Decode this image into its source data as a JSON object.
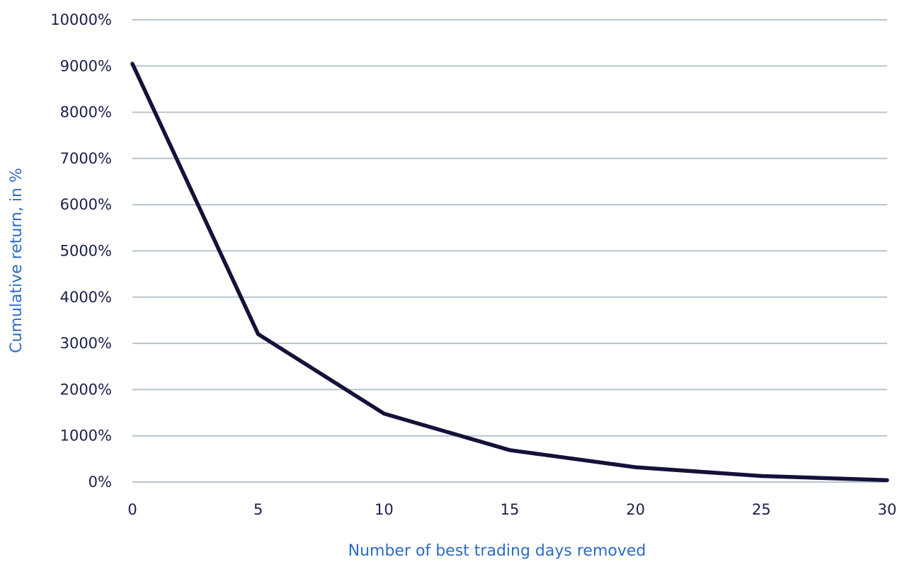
{
  "chart_data": {
    "type": "line",
    "xlabel": "Number of best trading days removed",
    "ylabel": "Cumulative return, in %",
    "x": [
      0,
      5,
      10,
      15,
      20,
      25,
      30
    ],
    "series": [
      {
        "values": [
          9050,
          3200,
          1480,
          690,
          320,
          130,
          40
        ]
      }
    ],
    "xlim": [
      0,
      30
    ],
    "ylim": [
      0,
      10000
    ],
    "x_ticks": [
      0,
      5,
      10,
      15,
      20,
      25,
      30
    ],
    "x_tick_labels": [
      "0",
      "5",
      "10",
      "15",
      "20",
      "25",
      "30"
    ],
    "y_ticks": [
      0,
      1000,
      2000,
      3000,
      4000,
      5000,
      6000,
      7000,
      8000,
      9000,
      10000
    ],
    "y_tick_labels": [
      "0%",
      "1000%",
      "2000%",
      "3000%",
      "4000%",
      "5000%",
      "6000%",
      "7000%",
      "8000%",
      "9000%",
      "10000%"
    ],
    "grid": true,
    "legend": "none",
    "colors": {
      "line": "#14123a",
      "grid": "#b8c3cc",
      "axis_title": "#2e6cc4",
      "tick_text": "#1b1f4b"
    }
  }
}
